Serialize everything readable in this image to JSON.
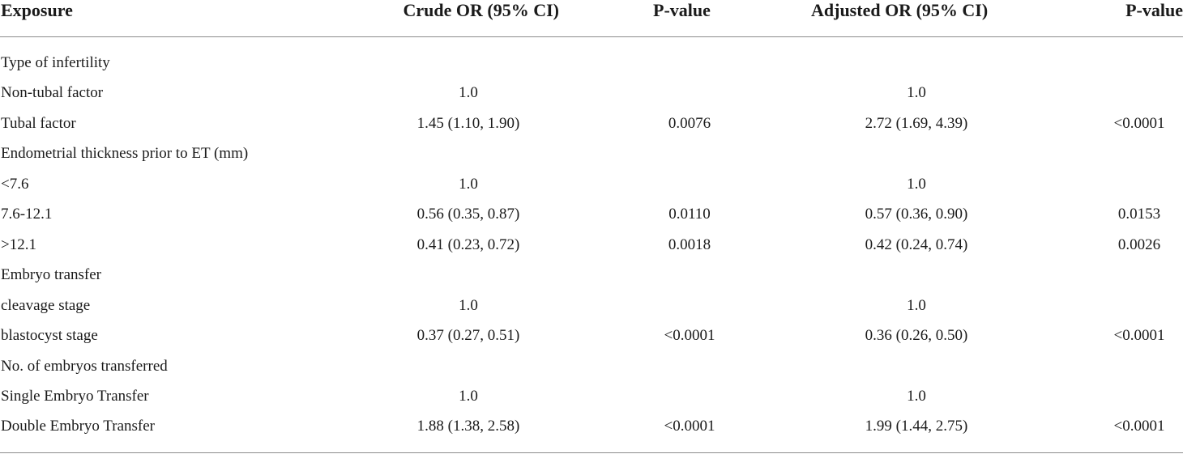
{
  "header": {
    "exposure": "Exposure",
    "crude_or": "Crude OR (95% CI)",
    "p_value_1": "P-value",
    "adjusted_or": "Adjusted OR (95% CI)",
    "p_value_2": "P-value"
  },
  "rows": [
    {
      "exposure": "Type of infertility",
      "crude": "",
      "p1": "",
      "adjusted": "",
      "p2": ""
    },
    {
      "exposure": "Non-tubal factor",
      "crude": "1.0",
      "p1": "",
      "adjusted": "1.0",
      "p2": ""
    },
    {
      "exposure": "Tubal factor",
      "crude": "1.45 (1.10, 1.90)",
      "p1": "0.0076",
      "adjusted": "2.72 (1.69, 4.39)",
      "p2": "<0.0001"
    },
    {
      "exposure": "Endometrial thickness prior to ET (mm)",
      "crude": "",
      "p1": "",
      "adjusted": "",
      "p2": ""
    },
    {
      "exposure": "<7.6",
      "crude": "1.0",
      "p1": "",
      "adjusted": "1.0",
      "p2": ""
    },
    {
      "exposure": "7.6-12.1",
      "crude": "0.56 (0.35, 0.87)",
      "p1": "0.0110",
      "adjusted": "0.57 (0.36, 0.90)",
      "p2": "0.0153"
    },
    {
      "exposure": ">12.1",
      "crude": "0.41 (0.23, 0.72)",
      "p1": "0.0018",
      "adjusted": "0.42 (0.24, 0.74)",
      "p2": "0.0026"
    },
    {
      "exposure": "Embryo transfer",
      "crude": "",
      "p1": "",
      "adjusted": "",
      "p2": ""
    },
    {
      "exposure": "cleavage stage",
      "crude": "1.0",
      "p1": "",
      "adjusted": "1.0",
      "p2": ""
    },
    {
      "exposure": "blastocyst stage",
      "crude": "0.37 (0.27, 0.51)",
      "p1": "<0.0001",
      "adjusted": "0.36 (0.26, 0.50)",
      "p2": "<0.0001"
    },
    {
      "exposure": "No. of embryos transferred",
      "crude": "",
      "p1": "",
      "adjusted": "",
      "p2": ""
    },
    {
      "exposure": "Single Embryo Transfer",
      "crude": "1.0",
      "p1": "",
      "adjusted": "1.0",
      "p2": ""
    },
    {
      "exposure": "Double Embryo Transfer",
      "crude": "1.88 (1.38, 2.58)",
      "p1": "<0.0001",
      "adjusted": "1.99 (1.44, 2.75)",
      "p2": "<0.0001"
    }
  ]
}
